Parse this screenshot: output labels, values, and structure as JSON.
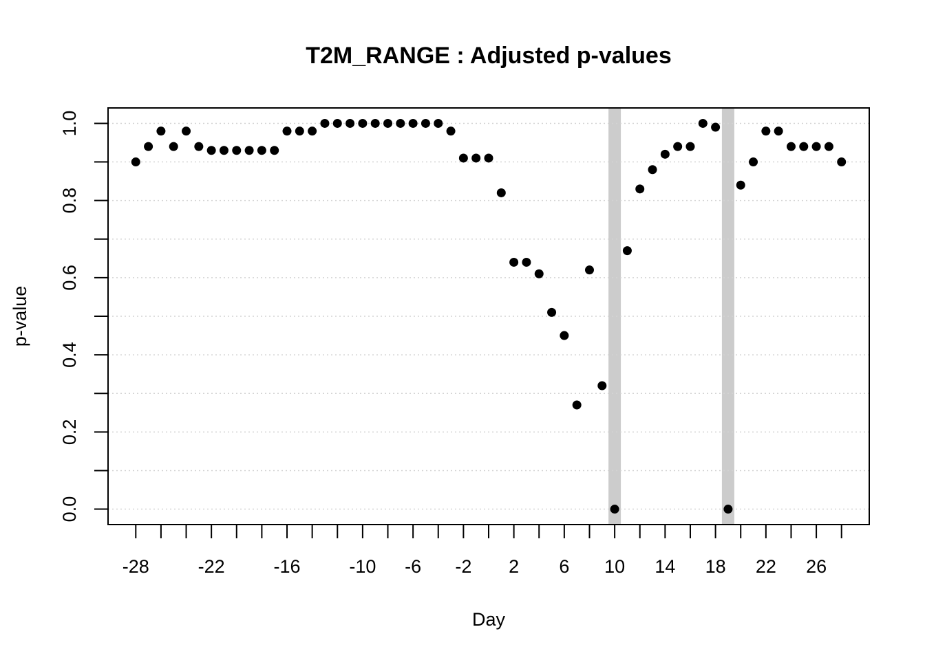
{
  "chart_data": {
    "type": "scatter",
    "title": "T2M_RANGE : Adjusted p-values",
    "xlabel": "Day",
    "ylabel": "p-value",
    "xlim": [
      -30.2,
      30.2
    ],
    "ylim": [
      -0.04,
      1.04
    ],
    "x_ticks_minor": [
      -28,
      -26,
      -24,
      -22,
      -20,
      -18,
      -16,
      -14,
      -12,
      -10,
      -8,
      -6,
      -4,
      -2,
      0,
      2,
      4,
      6,
      8,
      10,
      12,
      14,
      16,
      18,
      20,
      22,
      24,
      26,
      28
    ],
    "x_tick_labels": [
      {
        "value": -28,
        "label": "-28"
      },
      {
        "value": -22,
        "label": "-22"
      },
      {
        "value": -16,
        "label": "-16"
      },
      {
        "value": -10,
        "label": "-10"
      },
      {
        "value": -6,
        "label": "-6"
      },
      {
        "value": -2,
        "label": "-2"
      },
      {
        "value": 2,
        "label": "2"
      },
      {
        "value": 6,
        "label": "6"
      },
      {
        "value": 10,
        "label": "10"
      },
      {
        "value": 14,
        "label": "14"
      },
      {
        "value": 18,
        "label": "18"
      },
      {
        "value": 22,
        "label": "22"
      },
      {
        "value": 26,
        "label": "26"
      }
    ],
    "y_ticks_minor": [
      0,
      0.1,
      0.2,
      0.3,
      0.4,
      0.5,
      0.6,
      0.7,
      0.8,
      0.9,
      1.0
    ],
    "y_tick_labels": [
      {
        "value": 0.0,
        "label": "0.0"
      },
      {
        "value": 0.2,
        "label": "0.2"
      },
      {
        "value": 0.4,
        "label": "0.4"
      },
      {
        "value": 0.6,
        "label": "0.6"
      },
      {
        "value": 0.8,
        "label": "0.8"
      },
      {
        "value": 1.0,
        "label": "1.0"
      }
    ],
    "grid": true,
    "highlight_days": [
      10,
      19
    ],
    "highlight_color": "#cccccc",
    "grid_color": "#d3d3d3",
    "point_color": "#000000",
    "x": [
      -28,
      -27,
      -26,
      -25,
      -24,
      -23,
      -22,
      -21,
      -20,
      -19,
      -18,
      -17,
      -16,
      -15,
      -14,
      -13,
      -12,
      -11,
      -10,
      -9,
      -8,
      -7,
      -6,
      -5,
      -4,
      -3,
      -2,
      -1,
      0,
      1,
      2,
      3,
      4,
      5,
      6,
      7,
      8,
      9,
      10,
      11,
      12,
      13,
      14,
      15,
      16,
      17,
      18,
      19,
      20,
      21,
      22,
      23,
      24,
      25,
      26,
      27,
      28
    ],
    "y": [
      0.9,
      0.94,
      0.98,
      0.94,
      0.98,
      0.94,
      0.93,
      0.93,
      0.93,
      0.93,
      0.93,
      0.93,
      0.98,
      0.98,
      0.98,
      1.0,
      1.0,
      1.0,
      1.0,
      1.0,
      1.0,
      1.0,
      1.0,
      1.0,
      1.0,
      0.98,
      0.91,
      0.91,
      0.91,
      0.82,
      0.64,
      0.64,
      0.61,
      0.51,
      0.45,
      0.27,
      0.62,
      0.32,
      0.0,
      0.67,
      0.83,
      0.88,
      0.92,
      0.94,
      0.94,
      1.0,
      0.99,
      0.0,
      0.84,
      0.9,
      0.98,
      0.98,
      0.94,
      0.94,
      0.94,
      0.94,
      0.9
    ]
  }
}
